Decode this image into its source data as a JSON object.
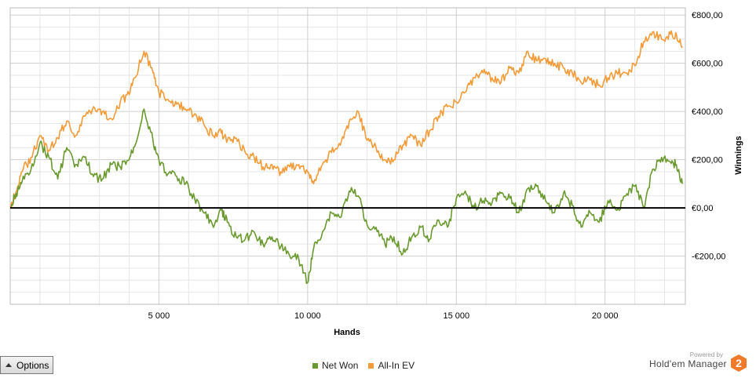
{
  "chart_data": {
    "type": "line",
    "title": "",
    "xlabel": "Hands",
    "ylabel": "Winnings",
    "xlim": [
      0,
      22700
    ],
    "ylim": [
      -400,
      830
    ],
    "x_ticks": [
      5000,
      10000,
      15000,
      20000
    ],
    "x_tick_labels": [
      "5 000",
      "10 000",
      "15 000",
      "20 000"
    ],
    "y_ticks": [
      -200,
      0,
      200,
      400,
      600,
      800
    ],
    "y_tick_labels": [
      "-€200,00",
      "€0,00",
      "€200,00",
      "€400,00",
      "€600,00",
      "€800,00"
    ],
    "y_axis_position": "right",
    "grid": true,
    "zero_line": true,
    "legend_position": "bottom-center",
    "series": [
      {
        "name": "Net Won",
        "color": "#6a9a2f",
        "x": [
          0,
          200,
          400,
          700,
          1000,
          1300,
          1600,
          1900,
          2200,
          2500,
          2800,
          3100,
          3400,
          3700,
          4000,
          4200,
          4500,
          4800,
          5000,
          5300,
          5600,
          5900,
          6200,
          6500,
          6800,
          7100,
          7300,
          7600,
          7900,
          8200,
          8500,
          8800,
          9100,
          9400,
          9700,
          10000,
          10200,
          10500,
          10800,
          11100,
          11400,
          11700,
          12000,
          12300,
          12600,
          12900,
          13200,
          13500,
          13800,
          14100,
          14400,
          14700,
          15000,
          15300,
          15600,
          15900,
          16200,
          16500,
          16800,
          17100,
          17400,
          17700,
          18000,
          18300,
          18600,
          18900,
          19200,
          19500,
          19800,
          20100,
          20400,
          20700,
          21000,
          21300,
          21600,
          21900,
          22200,
          22400,
          22600
        ],
        "values": [
          0,
          60,
          110,
          160,
          270,
          210,
          120,
          250,
          180,
          210,
          130,
          120,
          180,
          170,
          200,
          260,
          410,
          280,
          200,
          140,
          130,
          100,
          40,
          -20,
          -70,
          -10,
          -60,
          -120,
          -130,
          -100,
          -150,
          -120,
          -160,
          -200,
          -210,
          -310,
          -170,
          -100,
          -20,
          -40,
          70,
          50,
          -70,
          -80,
          -150,
          -120,
          -190,
          -120,
          -80,
          -130,
          -50,
          -80,
          40,
          70,
          0,
          30,
          20,
          60,
          40,
          -20,
          80,
          90,
          30,
          -20,
          60,
          10,
          -80,
          -20,
          -60,
          30,
          -10,
          50,
          90,
          0,
          160,
          210,
          190,
          180,
          100
        ],
        "note": ""
      },
      {
        "name": "All-In EV",
        "color": "#f29b38",
        "x": [
          0,
          200,
          400,
          700,
          1000,
          1300,
          1600,
          1900,
          2200,
          2500,
          2800,
          3100,
          3400,
          3700,
          4000,
          4200,
          4500,
          4800,
          5000,
          5300,
          5600,
          5900,
          6200,
          6500,
          6800,
          7100,
          7300,
          7600,
          7900,
          8200,
          8500,
          8800,
          9100,
          9400,
          9700,
          10000,
          10200,
          10500,
          10800,
          11100,
          11400,
          11700,
          12000,
          12300,
          12600,
          12900,
          13200,
          13500,
          13800,
          14100,
          14400,
          14700,
          15000,
          15300,
          15600,
          15900,
          16200,
          16500,
          16800,
          17100,
          17400,
          17700,
          18000,
          18300,
          18600,
          18900,
          19200,
          19500,
          19800,
          20100,
          20400,
          20700,
          21000,
          21300,
          21600,
          21900,
          22200,
          22400,
          22600
        ],
        "values": [
          0,
          70,
          150,
          210,
          300,
          240,
          290,
          360,
          300,
          380,
          420,
          400,
          370,
          440,
          470,
          540,
          650,
          560,
          480,
          450,
          430,
          410,
          390,
          350,
          300,
          310,
          280,
          290,
          230,
          210,
          170,
          180,
          150,
          170,
          180,
          150,
          100,
          180,
          230,
          260,
          360,
          400,
          280,
          250,
          200,
          200,
          260,
          300,
          260,
          320,
          380,
          420,
          440,
          480,
          540,
          560,
          540,
          520,
          580,
          560,
          650,
          610,
          620,
          600,
          580,
          560,
          520,
          530,
          510,
          540,
          560,
          560,
          590,
          690,
          730,
          700,
          720,
          720,
          670
        ],
        "note": ""
      }
    ]
  },
  "controls": {
    "options_label": "Options"
  },
  "legend": {
    "net_won_label": "Net Won",
    "all_in_ev_label": "All-In EV"
  },
  "brand": {
    "powered_by": "Powered by",
    "name": "Hold'em Manager",
    "logo_digit": "2",
    "logo_color": "#f07a2a"
  }
}
